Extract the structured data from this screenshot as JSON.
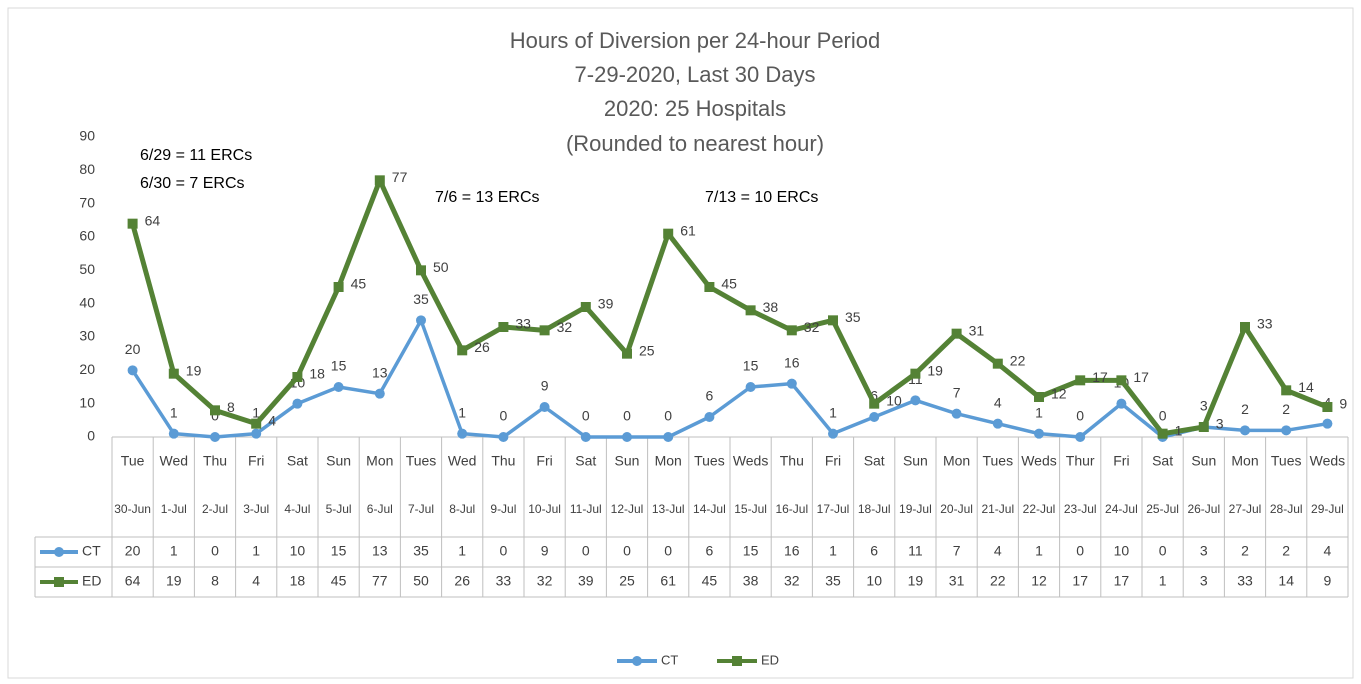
{
  "chart_data": {
    "type": "line",
    "title": [
      "Hours of Diversion per 24-hour Period",
      "7-29-2020, Last 30 Days",
      "2020:  25 Hospitals",
      "(Rounded to nearest hour)"
    ],
    "annotations": [
      "6/29 = 11 ERCs",
      "6/30 = 7 ERCs",
      "7/6 = 13 ERCs",
      "7/13 = 10 ERCs"
    ],
    "categories": [
      [
        "Tue",
        "30-Jun"
      ],
      [
        "Wed",
        "1-Jul"
      ],
      [
        "Thu",
        "2-Jul"
      ],
      [
        "Fri",
        "3-Jul"
      ],
      [
        "Sat",
        "4-Jul"
      ],
      [
        "Sun",
        "5-Jul"
      ],
      [
        "Mon",
        "6-Jul"
      ],
      [
        "Tues",
        "7-Jul"
      ],
      [
        "Wed",
        "8-Jul"
      ],
      [
        "Thu",
        "9-Jul"
      ],
      [
        "Fri",
        "10-Jul"
      ],
      [
        "Sat",
        "11-Jul"
      ],
      [
        "Sun",
        "12-Jul"
      ],
      [
        "Mon",
        "13-Jul"
      ],
      [
        "Tues",
        "14-Jul"
      ],
      [
        "Weds",
        "15-Jul"
      ],
      [
        "Thu",
        "16-Jul"
      ],
      [
        "Fri",
        "17-Jul"
      ],
      [
        "Sat",
        "18-Jul"
      ],
      [
        "Sun",
        "19-Jul"
      ],
      [
        "Mon",
        "20-Jul"
      ],
      [
        "Tues",
        "21-Jul"
      ],
      [
        "Weds",
        "22-Jul"
      ],
      [
        "Thur",
        "23-Jul"
      ],
      [
        "Fri",
        "24-Jul"
      ],
      [
        "Sat",
        "25-Jul"
      ],
      [
        "Sun",
        "26-Jul"
      ],
      [
        "Mon",
        "27-Jul"
      ],
      [
        "Tues",
        "28-Jul"
      ],
      [
        "Weds",
        "29-Jul"
      ]
    ],
    "series": [
      {
        "name": "CT",
        "color": "#5b9bd5",
        "marker": "circle",
        "values": [
          20,
          1,
          0,
          1,
          10,
          15,
          13,
          35,
          1,
          0,
          9,
          0,
          0,
          0,
          6,
          15,
          16,
          1,
          6,
          11,
          7,
          4,
          1,
          0,
          10,
          0,
          3,
          2,
          2,
          4
        ]
      },
      {
        "name": "ED",
        "color": "#548235",
        "marker": "square",
        "values": [
          64,
          19,
          8,
          4,
          18,
          45,
          77,
          50,
          26,
          33,
          32,
          39,
          25,
          61,
          45,
          38,
          32,
          35,
          10,
          19,
          31,
          22,
          12,
          17,
          17,
          1,
          3,
          33,
          14,
          9
        ]
      }
    ],
    "ylim": [
      0,
      90
    ],
    "yticks": [
      0,
      10,
      20,
      30,
      40,
      50,
      60,
      70,
      80,
      90
    ],
    "legend": "bottom"
  }
}
